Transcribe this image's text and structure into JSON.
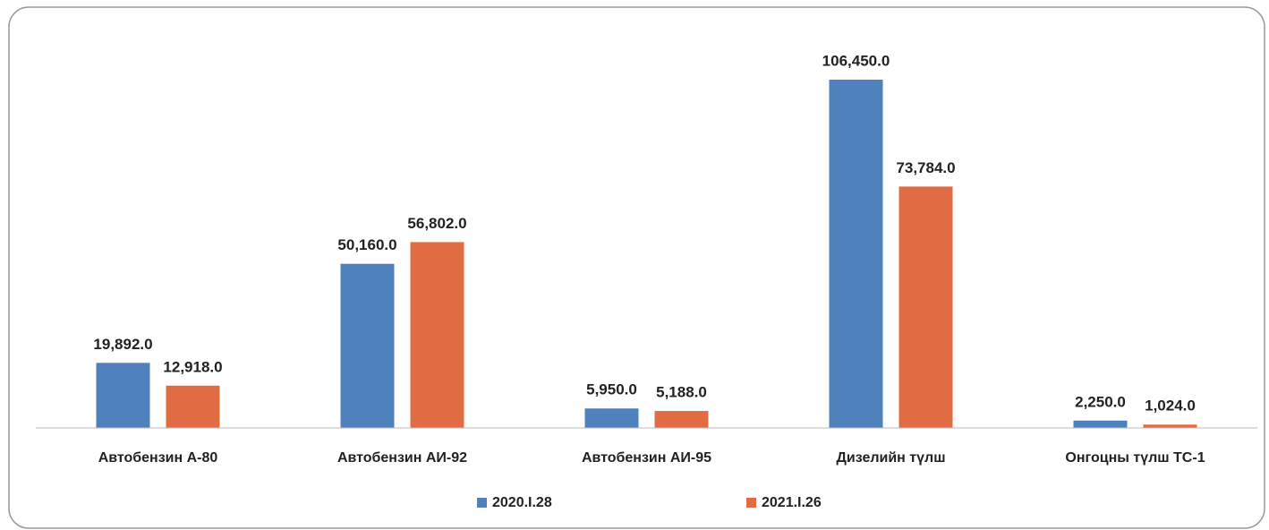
{
  "chart_data": {
    "type": "bar",
    "categories": [
      "Автобензин А-80",
      "Автобензин АИ-92",
      "Автобензин АИ-95",
      "Дизелийн түлш",
      "Онгоцны түлш ТС-1"
    ],
    "series": [
      {
        "name": "2020.I.28",
        "color": "#4f81bd",
        "values": [
          19892,
          50160,
          5950,
          106450,
          2250
        ],
        "value_labels": [
          "19,892.0",
          "50,160.0",
          "5,950.0",
          "106,450.0",
          "2,250.0"
        ]
      },
      {
        "name": "2021.I.26",
        "color": "#e06c44",
        "values": [
          12918,
          56802,
          5188,
          73784,
          1024
        ],
        "value_labels": [
          "12,918.0",
          "56,802.0",
          "5,188.0",
          "73,784.0",
          "1,024.0"
        ]
      }
    ],
    "legend": "bottom"
  }
}
